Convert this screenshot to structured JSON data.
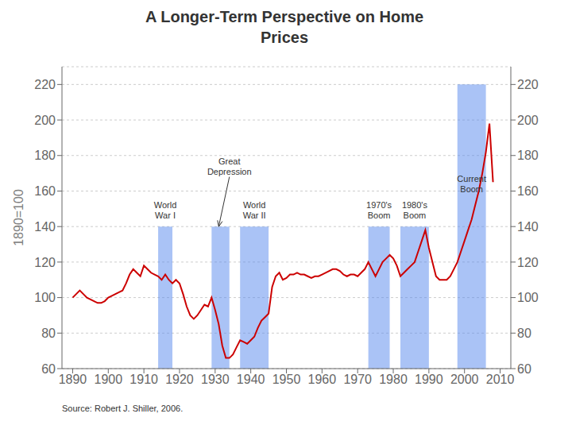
{
  "chart_data": {
    "type": "line",
    "title": "A Longer-Term Perspective on Home\nPrices",
    "y_label": "1890=100",
    "source": "Source: Robert J. Shiller, 2006.",
    "color": "#cc0000",
    "xlim": [
      1887,
      2013
    ],
    "xticks": [
      1890,
      1900,
      1910,
      1920,
      1930,
      1940,
      1950,
      1960,
      1970,
      1980,
      1990,
      2000,
      2010
    ],
    "ylim": [
      60,
      230
    ],
    "yticks": [
      60,
      80,
      100,
      120,
      140,
      160,
      180,
      200,
      220
    ],
    "y2lim": [
      60,
      230
    ],
    "y2ticks": [
      60,
      80,
      100,
      120,
      140,
      160,
      180,
      200,
      220
    ],
    "grid": true,
    "bands": [
      {
        "x1": 1914,
        "x2": 1918,
        "y": 140,
        "color": "#5588ee"
      },
      {
        "x1": 1929,
        "x2": 1934,
        "y": 140,
        "color": "#5588ee"
      },
      {
        "x1": 1937,
        "x2": 1945,
        "y": 140,
        "color": "#5588ee"
      },
      {
        "x1": 1973,
        "x2": 1979,
        "y": 140,
        "color": "#5588ee"
      },
      {
        "x1": 1982,
        "x2": 1990,
        "y": 140,
        "color": "#5588ee"
      },
      {
        "x1": 1998,
        "x2": 2006,
        "y": 220,
        "color": "#5588ee"
      }
    ],
    "annotations": [
      {
        "text": "World\nWar I",
        "x": 1916,
        "y": 143
      },
      {
        "text": "World\nWar II",
        "x": 1941,
        "y": 143
      },
      {
        "text": "1970's\nBoom",
        "x": 1976,
        "y": 143
      },
      {
        "text": "1980's\nBoom",
        "x": 1986,
        "y": 143
      },
      {
        "text": "Current\nBoom",
        "x": 2002,
        "y": 158
      },
      {
        "text": "Great\nDepression",
        "x": 1934,
        "y": 168,
        "arrow_x": 1931,
        "arrow_y": 140
      }
    ],
    "x": [
      1890,
      1891,
      1892,
      1893,
      1894,
      1895,
      1896,
      1897,
      1898,
      1899,
      1900,
      1901,
      1902,
      1903,
      1904,
      1905,
      1906,
      1907,
      1908,
      1909,
      1910,
      1911,
      1912,
      1913,
      1914,
      1915,
      1916,
      1917,
      1918,
      1919,
      1920,
      1921,
      1922,
      1923,
      1924,
      1925,
      1926,
      1927,
      1928,
      1929,
      1930,
      1931,
      1932,
      1933,
      1934,
      1935,
      1936,
      1937,
      1938,
      1939,
      1940,
      1941,
      1942,
      1943,
      1944,
      1945,
      1946,
      1947,
      1948,
      1949,
      1950,
      1951,
      1952,
      1953,
      1954,
      1955,
      1956,
      1957,
      1958,
      1959,
      1960,
      1961,
      1962,
      1963,
      1964,
      1965,
      1966,
      1967,
      1968,
      1969,
      1970,
      1971,
      1972,
      1973,
      1974,
      1975,
      1976,
      1977,
      1978,
      1979,
      1980,
      1981,
      1982,
      1983,
      1984,
      1985,
      1986,
      1987,
      1988,
      1989,
      1990,
      1991,
      1992,
      1993,
      1994,
      1995,
      1996,
      1997,
      1998,
      1999,
      2000,
      2001,
      2002,
      2003,
      2004,
      2005,
      2006,
      2007,
      2008
    ],
    "values": [
      100,
      102,
      104,
      102,
      100,
      99,
      98,
      97,
      97,
      98,
      100,
      101,
      102,
      103,
      104,
      108,
      113,
      116,
      114,
      112,
      118,
      116,
      114,
      113,
      112,
      110,
      113,
      110,
      108,
      110,
      108,
      102,
      95,
      90,
      88,
      90,
      93,
      96,
      95,
      100,
      93,
      85,
      73,
      66,
      66,
      68,
      72,
      76,
      75,
      74,
      76,
      78,
      83,
      87,
      89,
      91,
      106,
      112,
      114,
      110,
      111,
      113,
      113,
      114,
      113,
      113,
      112,
      111,
      112,
      112,
      113,
      114,
      115,
      116,
      116,
      115,
      113,
      112,
      113,
      113,
      112,
      114,
      116,
      120,
      116,
      112,
      116,
      120,
      122,
      124,
      122,
      118,
      112,
      114,
      116,
      118,
      120,
      126,
      132,
      138,
      128,
      120,
      112,
      110,
      110,
      110,
      112,
      116,
      120,
      126,
      132,
      138,
      144,
      152,
      160,
      170,
      182,
      198,
      165
    ]
  }
}
